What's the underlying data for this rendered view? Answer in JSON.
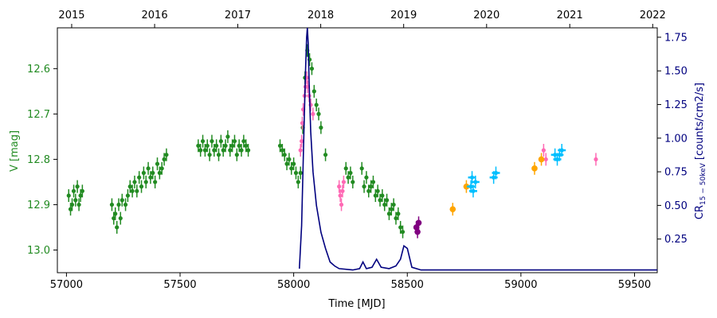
{
  "chart_data": {
    "type": "scatter",
    "xlabel": "Time [MJD]",
    "ylabel_left": "V [mag]",
    "ylabel_right": "CR",
    "ylabel_right_sub": "15 − 50keV",
    "ylabel_right_suffix": " [counts/cm2/s]",
    "xlim": [
      56960,
      59600
    ],
    "ylim_left": [
      13.05,
      12.51
    ],
    "ylim_right": [
      0.0,
      1.82
    ],
    "x_ticks": [
      57000,
      57500,
      58000,
      58500,
      59000,
      59500
    ],
    "x_tick_labels": [
      "57000",
      "57500",
      "58000",
      "58500",
      "59000",
      "59500"
    ],
    "left_ticks": [
      12.6,
      12.7,
      12.8,
      12.9,
      13.0
    ],
    "left_tick_labels": [
      "12.6",
      "12.7",
      "12.8",
      "12.9",
      "13.0"
    ],
    "right_ticks": [
      0.25,
      0.5,
      0.75,
      1.0,
      1.25,
      1.5,
      1.75
    ],
    "right_tick_labels": [
      "0.25",
      "0.50",
      "0.75",
      "1.00",
      "1.25",
      "1.50",
      "1.75"
    ],
    "top_axis": {
      "ticks_mjd": [
        57023,
        57388,
        57754,
        58119,
        58484,
        58849,
        59215,
        59580
      ],
      "labels": [
        "2015",
        "2016",
        "2017",
        "2018",
        "2019",
        "2020",
        "2021",
        "2022"
      ]
    },
    "grid": false,
    "colors": {
      "green": "#228b22",
      "pink": "#ff69b4",
      "purple": "#800080",
      "orange": "#ffa500",
      "cyan": "#00bfff",
      "navy": "#00007f"
    },
    "series": [
      {
        "color_key": "green",
        "axis": "left",
        "points": [
          [
            57010,
            12.88
          ],
          [
            57018,
            12.91
          ],
          [
            57025,
            12.9
          ],
          [
            57032,
            12.87
          ],
          [
            57040,
            12.89
          ],
          [
            57048,
            12.86
          ],
          [
            57055,
            12.9
          ],
          [
            57062,
            12.88
          ],
          [
            57070,
            12.87
          ],
          [
            57200,
            12.9
          ],
          [
            57208,
            12.93
          ],
          [
            57215,
            12.92
          ],
          [
            57222,
            12.95
          ],
          [
            57230,
            12.9
          ],
          [
            57238,
            12.93
          ],
          [
            57245,
            12.89
          ],
          [
            57260,
            12.9
          ],
          [
            57270,
            12.88
          ],
          [
            57280,
            12.86
          ],
          [
            57290,
            12.87
          ],
          [
            57300,
            12.85
          ],
          [
            57310,
            12.87
          ],
          [
            57320,
            12.84
          ],
          [
            57330,
            12.86
          ],
          [
            57340,
            12.83
          ],
          [
            57350,
            12.85
          ],
          [
            57360,
            12.82
          ],
          [
            57370,
            12.84
          ],
          [
            57380,
            12.83
          ],
          [
            57390,
            12.85
          ],
          [
            57400,
            12.81
          ],
          [
            57410,
            12.83
          ],
          [
            57420,
            12.82
          ],
          [
            57430,
            12.8
          ],
          [
            57440,
            12.79
          ],
          [
            57580,
            12.77
          ],
          [
            57590,
            12.78
          ],
          [
            57600,
            12.76
          ],
          [
            57610,
            12.78
          ],
          [
            57620,
            12.77
          ],
          [
            57630,
            12.79
          ],
          [
            57640,
            12.76
          ],
          [
            57650,
            12.78
          ],
          [
            57660,
            12.77
          ],
          [
            57670,
            12.79
          ],
          [
            57680,
            12.76
          ],
          [
            57690,
            12.78
          ],
          [
            57700,
            12.77
          ],
          [
            57710,
            12.75
          ],
          [
            57720,
            12.78
          ],
          [
            57730,
            12.77
          ],
          [
            57740,
            12.76
          ],
          [
            57750,
            12.79
          ],
          [
            57760,
            12.77
          ],
          [
            57770,
            12.78
          ],
          [
            57780,
            12.76
          ],
          [
            57790,
            12.77
          ],
          [
            57800,
            12.78
          ],
          [
            57940,
            12.77
          ],
          [
            57950,
            12.78
          ],
          [
            57960,
            12.79
          ],
          [
            57970,
            12.81
          ],
          [
            57980,
            12.8
          ],
          [
            57990,
            12.82
          ],
          [
            58000,
            12.81
          ],
          [
            58010,
            12.83
          ],
          [
            58020,
            12.85
          ],
          [
            58030,
            12.83
          ],
          [
            58040,
            12.73
          ],
          [
            58050,
            12.62
          ],
          [
            58060,
            12.56
          ],
          [
            58070,
            12.58
          ],
          [
            58080,
            12.6
          ],
          [
            58090,
            12.65
          ],
          [
            58100,
            12.68
          ],
          [
            58110,
            12.7
          ],
          [
            58120,
            12.73
          ],
          [
            58140,
            12.79
          ],
          [
            58230,
            12.82
          ],
          [
            58240,
            12.84
          ],
          [
            58250,
            12.83
          ],
          [
            58260,
            12.85
          ],
          [
            58300,
            12.82
          ],
          [
            58310,
            12.86
          ],
          [
            58320,
            12.84
          ],
          [
            58330,
            12.87
          ],
          [
            58340,
            12.86
          ],
          [
            58350,
            12.85
          ],
          [
            58360,
            12.88
          ],
          [
            58370,
            12.87
          ],
          [
            58380,
            12.89
          ],
          [
            58390,
            12.88
          ],
          [
            58400,
            12.9
          ],
          [
            58410,
            12.89
          ],
          [
            58420,
            12.92
          ],
          [
            58430,
            12.91
          ],
          [
            58440,
            12.9
          ],
          [
            58450,
            12.93
          ],
          [
            58460,
            12.92
          ],
          [
            58470,
            12.95
          ],
          [
            58480,
            12.96
          ]
        ]
      },
      {
        "color_key": "pink",
        "axis": "left",
        "points": [
          [
            58030,
            12.78
          ],
          [
            58035,
            12.76
          ],
          [
            58038,
            12.72
          ],
          [
            58042,
            12.69
          ],
          [
            58048,
            12.66
          ],
          [
            58052,
            12.64
          ],
          [
            58058,
            12.62
          ],
          [
            58062,
            12.64
          ],
          [
            58068,
            12.66
          ],
          [
            58075,
            12.68
          ],
          [
            58085,
            12.7
          ],
          [
            58200,
            12.86
          ],
          [
            58205,
            12.88
          ],
          [
            58210,
            12.9
          ],
          [
            58215,
            12.87
          ],
          [
            58220,
            12.85
          ],
          [
            59100,
            12.78
          ],
          [
            59110,
            12.8
          ],
          [
            59330,
            12.8
          ]
        ]
      },
      {
        "color_key": "purple",
        "axis": "left",
        "points": [
          [
            58540,
            12.95
          ],
          [
            58545,
            12.96
          ],
          [
            58550,
            12.94
          ]
        ]
      },
      {
        "color_key": "orange",
        "axis": "left",
        "points": [
          [
            58700,
            12.91
          ],
          [
            58760,
            12.86
          ],
          [
            59060,
            12.82
          ],
          [
            59090,
            12.8
          ]
        ]
      },
      {
        "color_key": "cyan",
        "axis": "left",
        "points": [
          [
            58780,
            12.86
          ],
          [
            58785,
            12.84
          ],
          [
            58790,
            12.87
          ],
          [
            58800,
            12.85
          ],
          [
            58880,
            12.84
          ],
          [
            58890,
            12.83
          ],
          [
            59150,
            12.79
          ],
          [
            59160,
            12.8
          ],
          [
            59170,
            12.79
          ],
          [
            59180,
            12.78
          ]
        ]
      },
      {
        "color_key": "navy",
        "axis": "right",
        "line": true,
        "points": [
          [
            58025,
            0.03
          ],
          [
            58035,
            0.35
          ],
          [
            58045,
            1.05
          ],
          [
            58052,
            1.5
          ],
          [
            58057,
            1.75
          ],
          [
            58060,
            1.82
          ],
          [
            58064,
            1.7
          ],
          [
            58068,
            1.42
          ],
          [
            58075,
            1.05
          ],
          [
            58085,
            0.75
          ],
          [
            58100,
            0.5
          ],
          [
            58120,
            0.3
          ],
          [
            58140,
            0.18
          ],
          [
            58160,
            0.08
          ],
          [
            58180,
            0.05
          ],
          [
            58200,
            0.03
          ],
          [
            58260,
            0.02
          ],
          [
            58290,
            0.03
          ],
          [
            58305,
            0.08
          ],
          [
            58320,
            0.03
          ],
          [
            58345,
            0.04
          ],
          [
            58365,
            0.1
          ],
          [
            58385,
            0.04
          ],
          [
            58420,
            0.03
          ],
          [
            58450,
            0.05
          ],
          [
            58470,
            0.1
          ],
          [
            58485,
            0.2
          ],
          [
            58500,
            0.18
          ],
          [
            58520,
            0.04
          ],
          [
            58560,
            0.02
          ],
          [
            59000,
            0.02
          ],
          [
            59600,
            0.02
          ]
        ]
      }
    ]
  }
}
